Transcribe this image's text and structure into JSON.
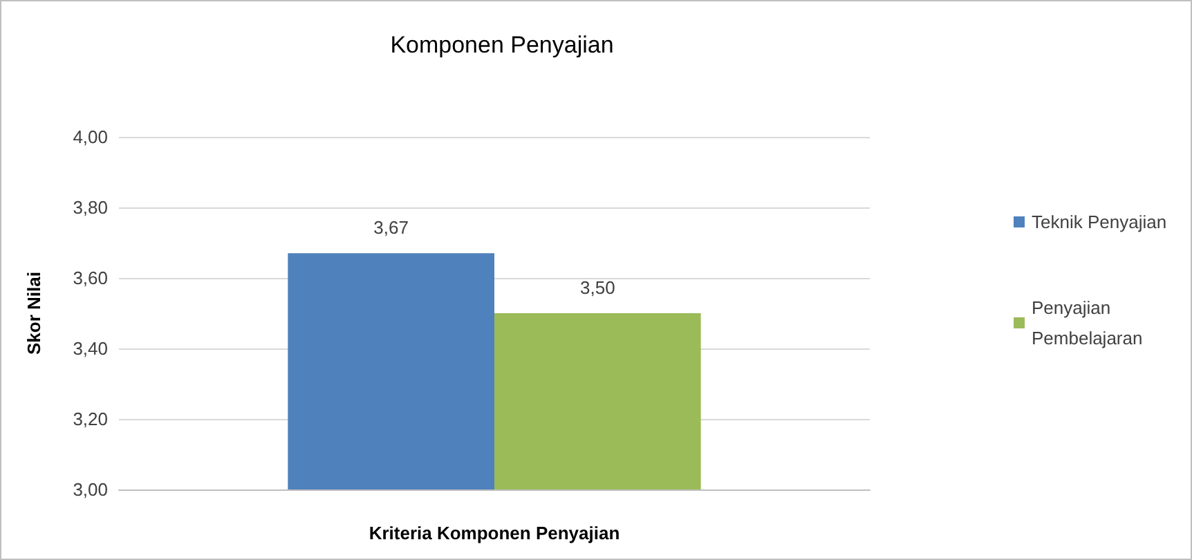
{
  "chart_data": {
    "type": "bar",
    "title": "Komponen Penyajian",
    "xlabel": "Kriteria Komponen Penyajian",
    "ylabel": "Skor Nilai",
    "categories": [
      null
    ],
    "series": [
      {
        "name": "Teknik Penyajian",
        "color": "#4f81bd",
        "values": [
          3.67
        ],
        "value_labels": [
          "3,67"
        ]
      },
      {
        "name": "Penyajian Pembelajaran",
        "color": "#9bbb59",
        "values": [
          3.5
        ],
        "value_labels": [
          "3,50"
        ]
      }
    ],
    "ylim": [
      3,
      4
    ],
    "yticks": [
      {
        "value": 3,
        "label": "3,00"
      },
      {
        "value": 3.2,
        "label": "3,20"
      },
      {
        "value": 3.4,
        "label": "3,40"
      },
      {
        "value": 3.6,
        "label": "3,60"
      },
      {
        "value": 3.8,
        "label": "3,80"
      },
      {
        "value": 4,
        "label": "4,00"
      }
    ],
    "grid": "y",
    "legend": "right"
  }
}
